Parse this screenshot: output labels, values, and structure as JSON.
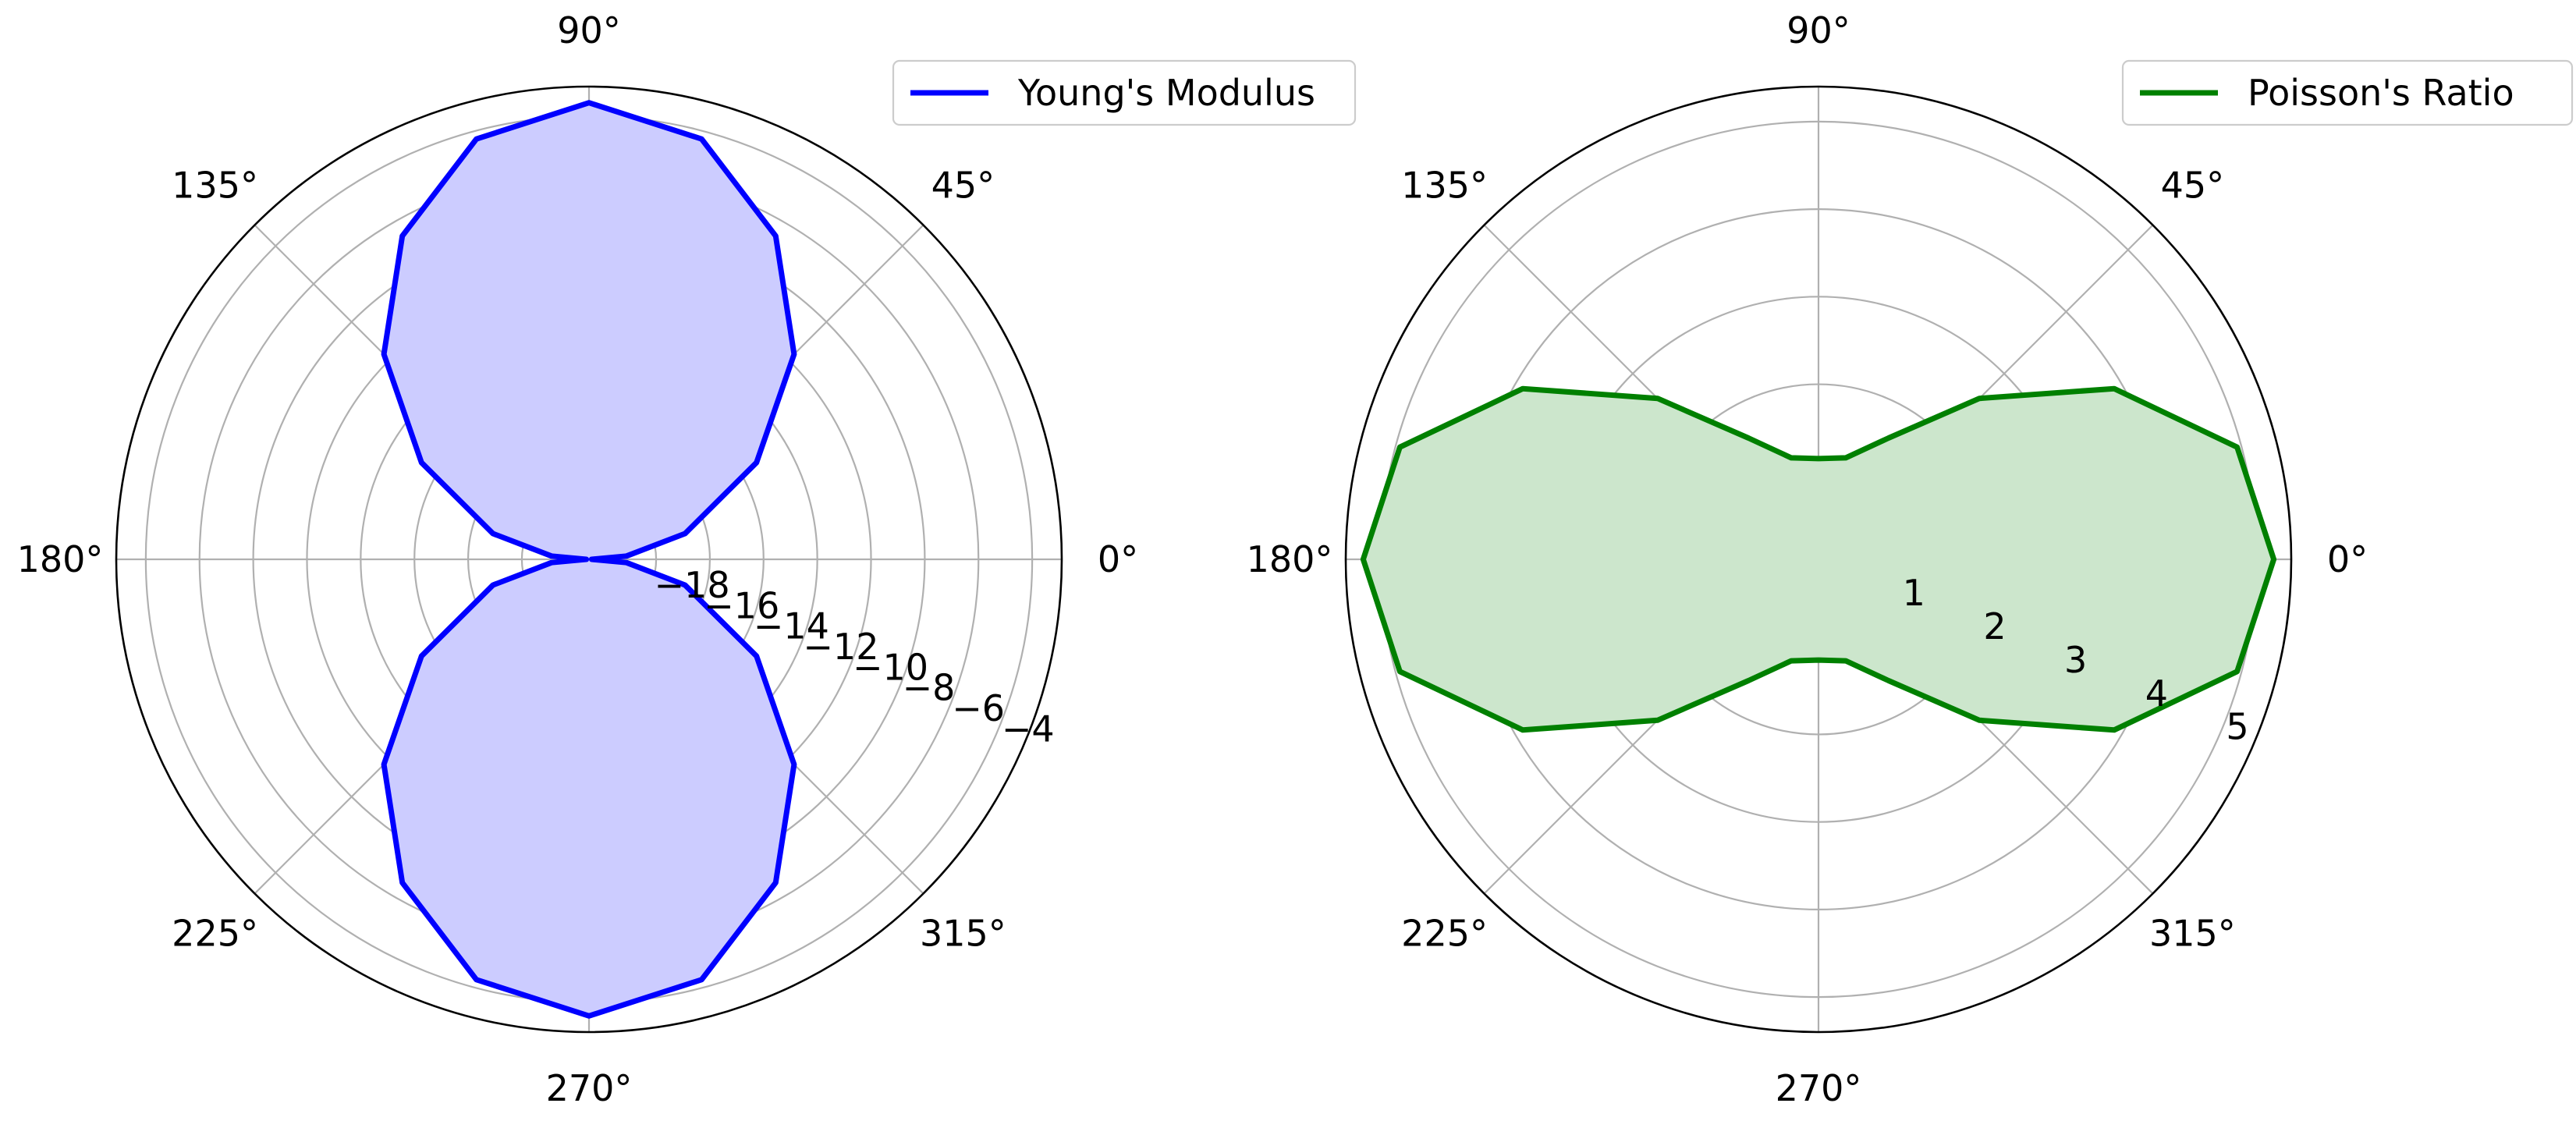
{
  "chart_data": [
    {
      "type": "polar-line",
      "theta_unit": "deg",
      "theta_tick_labels": [
        "0°",
        "45°",
        "90°",
        "135°",
        "180°",
        "225°",
        "270°",
        "315°"
      ],
      "r_ticks": [
        -18,
        -16,
        -14,
        -12,
        -10,
        -8,
        -6,
        -4
      ],
      "r_tick_labels": [
        "−18",
        "−16",
        "−14",
        "−12",
        "−10",
        "−8",
        "−6",
        "−4"
      ],
      "rlim": [
        -20.5,
        -2.9
      ],
      "r_label_position_deg": -22.5,
      "grid": true,
      "legend": {
        "position": "top-right",
        "entries": [
          "Young's Modulus"
        ]
      },
      "series": [
        {
          "name": "Young's Modulus",
          "color": "#0000ff",
          "fill": "#ccccff",
          "theta": [
            0,
            5,
            15,
            30,
            45,
            60,
            75,
            90,
            105,
            120,
            135,
            150,
            165,
            175,
            180,
            185,
            195,
            210,
            225,
            240,
            255,
            270,
            285,
            300,
            315,
            330,
            345,
            355,
            360
          ],
          "r": [
            -20.4,
            -19.1,
            -16.8,
            -13.3,
            -9.7,
            -6.6,
            -4.3,
            -3.5,
            -4.3,
            -6.6,
            -9.7,
            -13.3,
            -16.8,
            -19.1,
            -20.4,
            -19.1,
            -16.8,
            -13.3,
            -9.7,
            -6.6,
            -4.3,
            -3.5,
            -4.3,
            -6.6,
            -9.7,
            -13.3,
            -16.8,
            -19.1,
            -20.4
          ]
        }
      ]
    },
    {
      "type": "polar-line",
      "theta_unit": "deg",
      "theta_tick_labels": [
        "0°",
        "45°",
        "90°",
        "135°",
        "180°",
        "225°",
        "270°",
        "315°"
      ],
      "r_ticks": [
        1,
        2,
        3,
        4,
        5
      ],
      "r_tick_labels": [
        "1",
        "2",
        "3",
        "4",
        "5"
      ],
      "rlim": [
        0,
        5.4
      ],
      "r_label_position_deg": -22.5,
      "grid": true,
      "legend": {
        "position": "top-right",
        "entries": [
          "Poisson's Ratio"
        ]
      },
      "series": [
        {
          "name": "Poisson's Ratio",
          "color": "#008000",
          "fill": "#cce6cc",
          "theta": [
            0,
            15,
            30,
            45,
            60,
            75,
            90,
            105,
            120,
            135,
            150,
            165,
            180,
            195,
            210,
            225,
            240,
            255,
            270,
            285,
            300,
            315,
            330,
            345,
            360
          ],
          "r": [
            5.2,
            4.95,
            3.9,
            2.6,
            1.6,
            1.2,
            1.15,
            1.2,
            1.6,
            2.6,
            3.9,
            4.95,
            5.2,
            4.95,
            3.9,
            2.6,
            1.6,
            1.2,
            1.15,
            1.2,
            1.6,
            2.6,
            3.9,
            4.95,
            5.2
          ]
        }
      ]
    }
  ]
}
